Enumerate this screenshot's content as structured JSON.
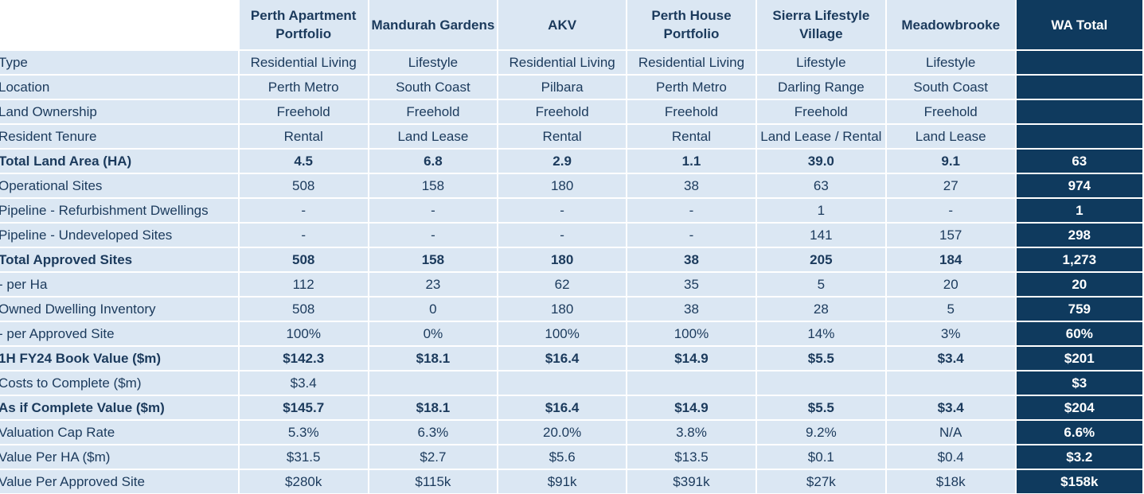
{
  "columns": [
    "Perth Apartment Portfolio",
    "Mandurah Gardens",
    "AKV",
    "Perth House Portfolio",
    "Sierra Lifestyle Village",
    "Meadowbrooke"
  ],
  "total_header": "WA Total",
  "rows": [
    {
      "label": "Type",
      "bold": false,
      "values": [
        "Residential Living",
        "Lifestyle",
        "Residential Living",
        "Residential Living",
        "Lifestyle",
        "Lifestyle"
      ],
      "total": ""
    },
    {
      "label": "Location",
      "bold": false,
      "values": [
        "Perth Metro",
        "South Coast",
        "Pilbara",
        "Perth Metro",
        "Darling Range",
        "South Coast"
      ],
      "total": ""
    },
    {
      "label": "Land Ownership",
      "bold": false,
      "values": [
        "Freehold",
        "Freehold",
        "Freehold",
        "Freehold",
        "Freehold",
        "Freehold"
      ],
      "total": ""
    },
    {
      "label": "Resident Tenure",
      "bold": false,
      "values": [
        "Rental",
        "Land Lease",
        "Rental",
        "Rental",
        "Land Lease / Rental",
        "Land Lease"
      ],
      "total": ""
    },
    {
      "label": "Total Land Area (HA)",
      "bold": true,
      "values": [
        "4.5",
        "6.8",
        "2.9",
        "1.1",
        "39.0",
        "9.1"
      ],
      "total": "63"
    },
    {
      "label": "Operational Sites",
      "bold": false,
      "values": [
        "508",
        "158",
        "180",
        "38",
        "63",
        "27"
      ],
      "total": "974"
    },
    {
      "label": "Pipeline - Refurbishment Dwellings",
      "bold": false,
      "values": [
        "-",
        "-",
        "-",
        "-",
        "1",
        "-"
      ],
      "total": "1"
    },
    {
      "label": "Pipeline - Undeveloped Sites",
      "bold": false,
      "values": [
        "-",
        "-",
        "-",
        "-",
        "141",
        "157"
      ],
      "total": "298"
    },
    {
      "label": "Total Approved Sites",
      "bold": true,
      "values": [
        "508",
        "158",
        "180",
        "38",
        "205",
        "184"
      ],
      "total": "1,273"
    },
    {
      "label": " - per Ha",
      "bold": false,
      "values": [
        "112",
        "23",
        "62",
        "35",
        "5",
        "20"
      ],
      "total": "20"
    },
    {
      "label": "Owned Dwelling Inventory",
      "bold": false,
      "values": [
        "508",
        "0",
        "180",
        "38",
        "28",
        "5"
      ],
      "total": "759"
    },
    {
      "label": " - per Approved Site",
      "bold": false,
      "values": [
        "100%",
        "0%",
        "100%",
        "100%",
        "14%",
        "3%"
      ],
      "total": "60%"
    },
    {
      "label": "1H FY24 Book Value  ($m)",
      "bold": true,
      "values": [
        "$142.3",
        "$18.1",
        "$16.4",
        "$14.9",
        "$5.5",
        "$3.4"
      ],
      "total": "$201"
    },
    {
      "label": "Costs to Complete ($m)",
      "bold": false,
      "values": [
        "$3.4",
        "",
        "",
        "",
        "",
        ""
      ],
      "total": "$3"
    },
    {
      "label": "As if Complete Value ($m)",
      "bold": true,
      "values": [
        "$145.7",
        "$18.1",
        "$16.4",
        "$14.9",
        "$5.5",
        "$3.4"
      ],
      "total": "$204"
    },
    {
      "label": "Valuation Cap Rate",
      "bold": false,
      "values": [
        "5.3%",
        "6.3%",
        "20.0%",
        "3.8%",
        "9.2%",
        "N/A"
      ],
      "total": "6.6%"
    },
    {
      "label": "Value Per HA ($m)",
      "bold": false,
      "values": [
        "$31.5",
        "$2.7",
        "$5.6",
        "$13.5",
        "$0.1",
        "$0.4"
      ],
      "total": "$3.2"
    },
    {
      "label": "Value Per Approved Site",
      "bold": false,
      "values": [
        "$280k",
        "$115k",
        "$91k",
        "$391k",
        "$27k",
        "$18k"
      ],
      "total": "$158k"
    }
  ],
  "corner_icon": "document-outline-icon",
  "colors": {
    "cell_bg": "#dbe7f3",
    "total_bg": "#0f3a5e",
    "text": "#1b3a5c"
  }
}
